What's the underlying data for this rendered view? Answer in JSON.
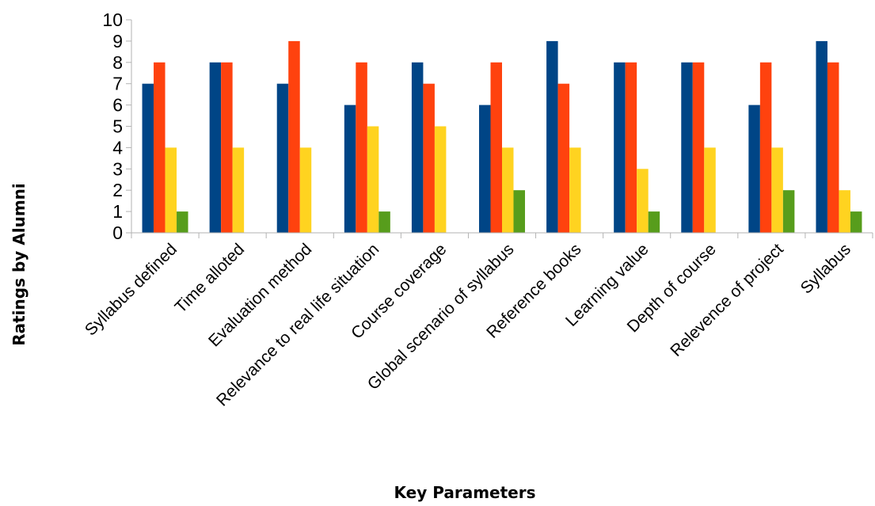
{
  "chart_data": {
    "type": "bar",
    "xlabel": "Key Parameters",
    "ylabel": "Ratings by Alumni",
    "ylim": [
      0,
      10
    ],
    "yticks": [
      "0",
      "1",
      "2",
      "3",
      "4",
      "5",
      "6",
      "7",
      "8",
      "9",
      "10"
    ],
    "grid": false,
    "legend": "none",
    "categories": [
      "Syllabus defined",
      "Time alloted",
      "Evaluation method",
      "Relevance to real life situation",
      "Course coverage",
      "Global scenario of syllabus",
      "Reference books",
      "Learning value",
      "Depth of course",
      "Relevence of project",
      "Syllabus"
    ],
    "series": [
      {
        "color": "#004586",
        "values": [
          7,
          8,
          7,
          6,
          8,
          6,
          9,
          8,
          8,
          6,
          9
        ]
      },
      {
        "color": "#ff420e",
        "values": [
          8,
          8,
          9,
          8,
          7,
          8,
          7,
          8,
          8,
          8,
          8
        ]
      },
      {
        "color": "#ffd320",
        "values": [
          4,
          4,
          4,
          5,
          5,
          4,
          4,
          3,
          4,
          4,
          2
        ]
      },
      {
        "color": "#579d1c",
        "values": [
          1,
          0,
          0,
          1,
          0,
          2,
          0,
          1,
          0,
          2,
          1
        ]
      }
    ]
  }
}
